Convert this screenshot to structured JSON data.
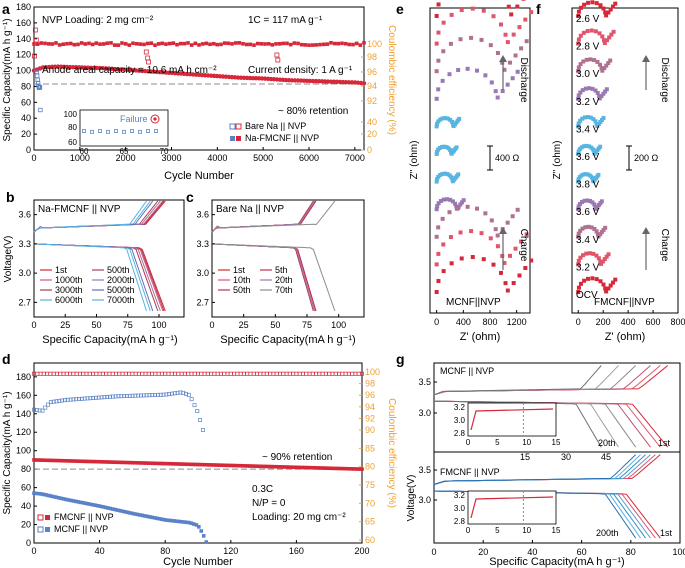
{
  "figure": {
    "panel_letters": [
      "a",
      "b",
      "c",
      "d",
      "e",
      "f",
      "g"
    ]
  },
  "colors": {
    "red": "#d62839",
    "pink": "#e0556a",
    "blue": "#5a82c8",
    "lightblue": "#58b4e0",
    "purple": "#9a78b4",
    "orange": "#f0a030",
    "gray": "#8c8c8c",
    "axis": "#000000"
  },
  "panel_a": {
    "annotations": {
      "loading": "NVP Loading: 2 mg cm⁻²",
      "rate": "1C = 117 mA g⁻¹",
      "anode": "Anode areal capacity = 10.6 mA h cm⁻²",
      "current": "Current density: 1 A g⁻¹",
      "retention": "~ 80% retention",
      "failure": "Failure"
    },
    "inset_ticks_x": [
      "60",
      "65",
      "70"
    ],
    "inset_ticks_y": [
      "60",
      "80",
      "100"
    ]
  },
  "panel_b": {
    "inset_title": "Na-FMCNF || NVP"
  },
  "panel_c": {
    "inset_title": "Bare Na || NVP"
  },
  "panel_d": {
    "annotations": {
      "retention": "~ 90% retention",
      "rate": "0.3C",
      "np": "N/P = 0",
      "loading": "Loading: 20 mg cm⁻²"
    }
  },
  "panel_e": {
    "discharge_label": "Discharge",
    "charge_label": "Charge",
    "scale_label": "400 Ω",
    "cell_label": "MCNF||NVP"
  },
  "panel_f": {
    "discharge_label": "Discharge",
    "charge_label": "Charge",
    "scale_label": "200 Ω",
    "cell_label": "FMCNF||NVP",
    "voltage_labels": [
      "2.6 V",
      "2.8 V",
      "3.0 V",
      "3.2 V",
      "3.4 V",
      "3.6 V",
      "3.8 V",
      "3.6 V",
      "3.4 V",
      "3.2 V",
      "OCV"
    ]
  },
  "panel_g": {
    "top_label": "MCNF || NVP",
    "bottom_label": "FMCNF || NVP",
    "top_cycle_last": "20th",
    "top_cycle_first": "1st",
    "bottom_cycle_last": "200th",
    "bottom_cycle_first": "1st",
    "top_xticks": [
      "15",
      "30",
      "45"
    ]
  },
  "chart_data": [
    {
      "id": "a",
      "type": "scatter",
      "title": "",
      "xlabel": "Cycle Number",
      "ylabel": "Specific Capacity(mA h g⁻¹)",
      "y2label": "Coulombic efficiency (%)",
      "xlim": [
        0,
        7200
      ],
      "ylim": [
        0,
        180
      ],
      "y2lim": [
        0,
        104
      ],
      "xticks": [
        0,
        1000,
        2000,
        3000,
        4000,
        5000,
        6000,
        7000
      ],
      "yticks": [
        0,
        20,
        40,
        60,
        80,
        100,
        120,
        140,
        160,
        180
      ],
      "y2ticks": [
        0,
        20,
        40,
        92,
        94,
        96,
        98,
        100
      ],
      "reference_line": 83,
      "legend": [
        "Bare Na || NVP",
        "Na-FMCNF || NVP"
      ],
      "series": [
        {
          "name": "Na-FMCNF || NVP capacity",
          "x": [
            0,
            200,
            500,
            1000,
            1500,
            2000,
            2500,
            3000,
            3500,
            4000,
            4500,
            5000,
            5500,
            6000,
            6500,
            7000,
            7200
          ],
          "values": [
            100,
            104,
            105,
            104,
            103,
            101,
            99,
            97,
            95,
            93,
            91,
            90,
            88,
            87,
            86,
            85,
            84
          ]
        },
        {
          "name": "Bare Na || NVP capacity",
          "x": [
            0,
            10,
            20,
            30,
            40,
            50,
            60,
            70,
            80
          ],
          "values": [
            98,
            93,
            88,
            84,
            80,
            78,
            78,
            79,
            50
          ]
        },
        {
          "name": "Na-FMCNF || NVP CE",
          "x": [
            0,
            1000,
            2000,
            3000,
            4000,
            5000,
            6000,
            7000
          ],
          "values": [
            100,
            100,
            100,
            100,
            100,
            100,
            100,
            100
          ]
        },
        {
          "name": "Inset Bare Na capacity",
          "x": [
            60,
            61,
            62,
            63,
            64,
            65,
            66,
            67,
            68,
            69
          ],
          "values": [
            78,
            77,
            78,
            77,
            78,
            77,
            78,
            77,
            78,
            78
          ]
        }
      ]
    },
    {
      "id": "b",
      "type": "line",
      "title": "Na-FMCNF || NVP",
      "xlabel": "Specific Capacity(mA h g⁻¹)",
      "ylabel": "Voltage(V)",
      "xlim": [
        0,
        120
      ],
      "ylim": [
        2.55,
        3.75
      ],
      "xticks": [
        0,
        25,
        50,
        75,
        100
      ],
      "yticks": [
        2.7,
        3.0,
        3.3,
        3.6
      ],
      "legend": [
        "1st",
        "1000th",
        "3000th",
        "6000th",
        "500th",
        "2000th",
        "5000th",
        "7000th"
      ],
      "end_capacity": [
        105,
        103,
        99,
        93,
        104,
        101,
        95,
        90
      ]
    },
    {
      "id": "c",
      "type": "line",
      "title": "Bare Na || NVP",
      "xlabel": "Specific Capacity(mA h g⁻¹)",
      "ylabel": "Voltage(V)",
      "xlim": [
        0,
        120
      ],
      "ylim": [
        2.55,
        3.75
      ],
      "xticks": [
        0,
        25,
        50,
        75,
        100
      ],
      "yticks": [
        2.7,
        3.0,
        3.3,
        3.6
      ],
      "legend": [
        "1st",
        "10th",
        "50th",
        "5th",
        "20th",
        "70th"
      ],
      "end_capacity": [
        82,
        81,
        80,
        82,
        81,
        97
      ]
    },
    {
      "id": "d",
      "type": "scatter",
      "title": "",
      "xlabel": "Cycle Number",
      "ylabel": "Specific Capacity(mA h g⁻¹)",
      "y2label": "Coulombic efficiency (%)",
      "xlim": [
        0,
        200
      ],
      "ylim": [
        0,
        195
      ],
      "y2lim": [
        60,
        101
      ],
      "xticks": [
        0,
        40,
        80,
        120,
        160,
        200
      ],
      "yticks": [
        0,
        20,
        40,
        60,
        80,
        100,
        120,
        140,
        160,
        180
      ],
      "y2ticks": [
        60,
        65,
        70,
        75,
        80,
        85,
        90,
        92,
        94,
        96,
        98,
        100
      ],
      "reference_line": 80,
      "legend": [
        "FMCNF || NVP",
        "MCNF || NVP"
      ],
      "series": [
        {
          "name": "FMCNF || NVP capacity",
          "x": [
            0,
            40,
            80,
            120,
            160,
            200
          ],
          "values": [
            90,
            88,
            86,
            84,
            82,
            80
          ]
        },
        {
          "name": "MCNF || NVP capacity",
          "x": [
            0,
            5,
            10,
            20,
            40,
            60,
            80,
            90,
            95,
            100,
            103,
            105
          ],
          "values": [
            54,
            53,
            51,
            47,
            40,
            32,
            25,
            23,
            22,
            19,
            10,
            1
          ]
        },
        {
          "name": "FMCNF || NVP CE",
          "x": [
            0,
            40,
            80,
            120,
            160,
            200
          ],
          "values": [
            99.7,
            99.7,
            99.7,
            99.7,
            99.7,
            99.7
          ]
        },
        {
          "name": "MCNF || NVP CE",
          "x": [
            0,
            5,
            10,
            20,
            30,
            40,
            50,
            60,
            70,
            80,
            90,
            95,
            100,
            103
          ],
          "values": [
            93.5,
            93.3,
            94.8,
            95.2,
            95.4,
            95.6,
            95.8,
            95.9,
            96.0,
            96.1,
            96.5,
            96.0,
            93.0,
            90.0
          ]
        }
      ]
    },
    {
      "id": "e",
      "type": "scatter",
      "title": "MCNF||NVP",
      "xlabel": "Z' (ohm)",
      "ylabel": "Z'' (ohm)",
      "xlim": [
        -100,
        1400
      ],
      "xticks": [
        0,
        400,
        800,
        1200
      ],
      "spectra_count": 11
    },
    {
      "id": "f",
      "type": "scatter",
      "title": "FMCNF||NVP",
      "xlabel": "Z' (ohm)",
      "ylabel": "Z'' (ohm)",
      "xlim": [
        -50,
        800
      ],
      "xticks": [
        0,
        200,
        400,
        600,
        800
      ],
      "spectra_count": 11
    },
    {
      "id": "g",
      "type": "line",
      "title": "",
      "xlabel": "Specific Capacity(mA h g⁻¹)",
      "ylabel": "Voltage(V)",
      "xlim": [
        0,
        100
      ],
      "xticks": [
        0,
        20,
        40,
        60,
        80,
        100
      ],
      "yticks_top": [
        3.0,
        3.5
      ],
      "yticks_bottom": [
        3.0,
        3.5
      ],
      "inset_xticks": [
        0,
        5,
        10,
        15
      ],
      "inset_yticks": [
        2.8,
        3.0,
        3.2
      ],
      "top_end_capacity": [
        95,
        92,
        88,
        82,
        75,
        68
      ],
      "bottom_end_capacity": [
        92,
        90,
        88,
        86,
        84,
        82
      ]
    }
  ]
}
